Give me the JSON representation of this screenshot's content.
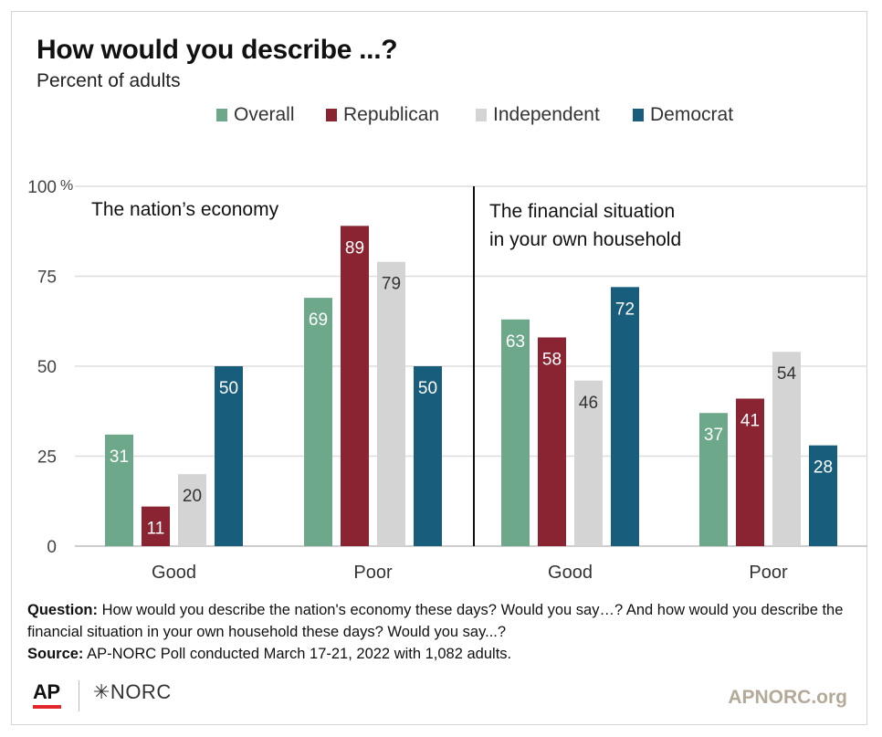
{
  "title": "How would you describe ...?",
  "subtitle": "Percent of adults",
  "colors": {
    "overall": "#6ea88a",
    "republican": "#8b2432",
    "independent": "#d4d4d4",
    "democrat": "#185e7c"
  },
  "chart_data": {
    "type": "bar",
    "y_axis": {
      "ylim": [
        0,
        100
      ],
      "ticks": [
        "0",
        "25",
        "50",
        "75",
        "100"
      ],
      "unit": "%"
    },
    "grid": true,
    "legend_position": "top",
    "series_names": [
      "Overall",
      "Republican",
      "Independent",
      "Democrat"
    ],
    "panels": [
      {
        "label": "The nation’s economy",
        "categories": [
          "Good",
          "Poor"
        ],
        "series": [
          {
            "name": "Overall",
            "values": [
              31,
              69
            ]
          },
          {
            "name": "Republican",
            "values": [
              11,
              89
            ]
          },
          {
            "name": "Independent",
            "values": [
              20,
              79
            ]
          },
          {
            "name": "Democrat",
            "values": [
              50,
              50
            ]
          }
        ]
      },
      {
        "label_lines": [
          "The financial situation",
          "in your own household"
        ],
        "categories": [
          "Good",
          "Poor"
        ],
        "series": [
          {
            "name": "Overall",
            "values": [
              63,
              37
            ]
          },
          {
            "name": "Republican",
            "values": [
              58,
              41
            ]
          },
          {
            "name": "Independent",
            "values": [
              46,
              54
            ]
          },
          {
            "name": "Democrat",
            "values": [
              72,
              28
            ]
          }
        ]
      }
    ]
  },
  "notes": {
    "question_label": "Question:",
    "question_text": " How would you describe the nation's economy these days? Would you say…? And how would you describe the financial situation in your own household these days? Would you say...?",
    "source_label": "Source:",
    "source_text": " AP-NORC Poll conducted March 17-21, 2022 with 1,082 adults."
  },
  "footer": {
    "ap_logo": "AP",
    "norc_logo": "✳NORC",
    "site": "APNORC.org"
  }
}
